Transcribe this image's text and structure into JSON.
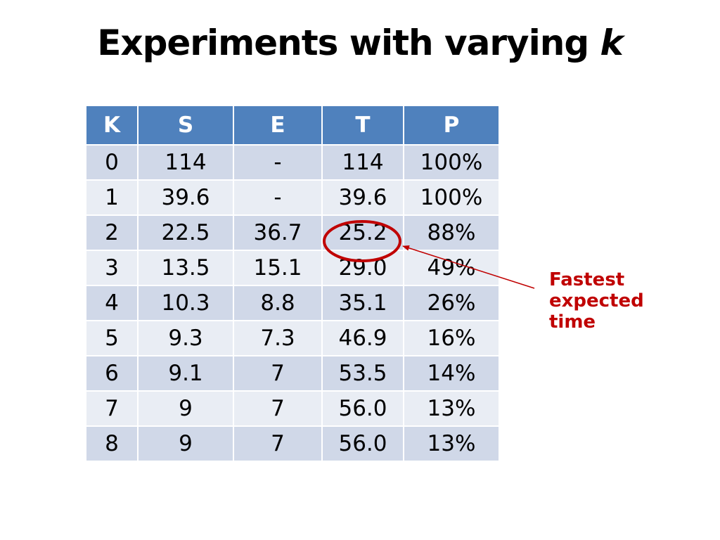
{
  "slide": {
    "title_main": "Experiments with varying ",
    "title_var": "k"
  },
  "table": {
    "headers": [
      "K",
      "S",
      "E",
      "T",
      "P"
    ],
    "rows": [
      [
        "0",
        "114",
        "-",
        "114",
        "100%"
      ],
      [
        "1",
        "39.6",
        "-",
        "39.6",
        "100%"
      ],
      [
        "2",
        "22.5",
        "36.7",
        "25.2",
        "88%"
      ],
      [
        "3",
        "13.5",
        "15.1",
        "29.0",
        "49%"
      ],
      [
        "4",
        "10.3",
        "8.8",
        "35.1",
        "26%"
      ],
      [
        "5",
        "9.3",
        "7.3",
        "46.9",
        "16%"
      ],
      [
        "6",
        "9.1",
        "7",
        "53.5",
        "14%"
      ],
      [
        "7",
        "9",
        "7",
        "56.0",
        "13%"
      ],
      [
        "8",
        "9",
        "7",
        "56.0",
        "13%"
      ]
    ],
    "header_color": "#4f81bd",
    "row_color_odd": "#d0d8e8",
    "row_color_even": "#e9edf4"
  },
  "annotation": {
    "lines": [
      "Fastest",
      "expected",
      "time"
    ],
    "color": "#c00000",
    "highlighted_cell": "25.2"
  }
}
